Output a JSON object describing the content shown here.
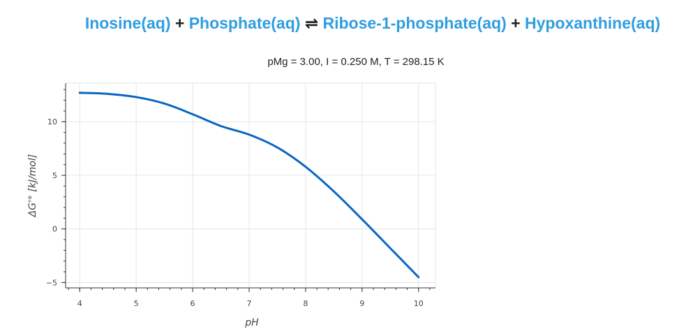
{
  "reaction": {
    "compounds": [
      "Inosine(aq)",
      "Phosphate(aq)",
      "Ribose-1-phosphate(aq)",
      "Hypoxanthine(aq)"
    ],
    "plus": "+",
    "equilibrium": "⇌"
  },
  "conditions": "pMg = 3.00, I = 0.250 M, T = 298.15 K",
  "colors": {
    "line": "#0a66c2",
    "compound": "#2f9ee0",
    "grid": "#e6e6e6"
  },
  "chart_data": {
    "type": "line",
    "title": "pMg = 3.00, I = 0.250 M, T = 298.15 K",
    "xlabel": "pH",
    "ylabel": "ΔG'° [kJ/mol]",
    "xlim": [
      3.75,
      10.3
    ],
    "ylim": [
      -5.5,
      13.6
    ],
    "xticks": [
      "4",
      "5",
      "6",
      "7",
      "8",
      "9",
      "10"
    ],
    "yticks": [
      "−5",
      "0",
      "5",
      "10"
    ],
    "grid": true,
    "series": [
      {
        "x": [
          4.0,
          4.5,
          5.0,
          5.5,
          6.0,
          6.5,
          7.0,
          7.5,
          8.0,
          8.5,
          9.0,
          9.5,
          10.0
        ],
        "y": [
          12.7,
          12.6,
          12.3,
          11.7,
          10.7,
          9.6,
          8.8,
          7.6,
          5.8,
          3.5,
          0.9,
          -1.8,
          -4.5
        ]
      }
    ]
  }
}
